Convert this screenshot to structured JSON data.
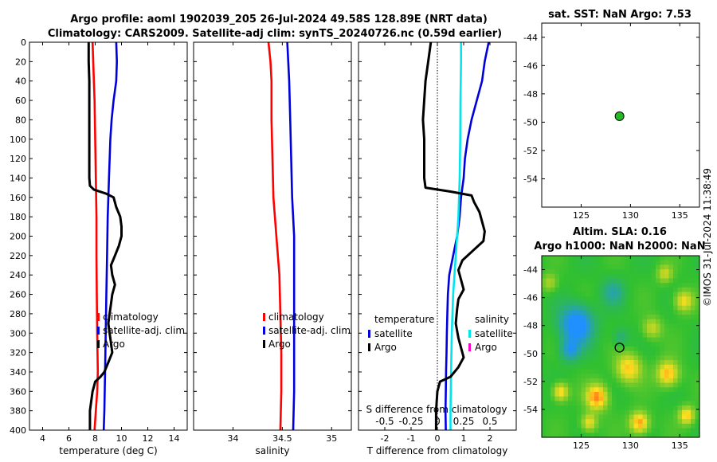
{
  "titles": {
    "main_line1": "Argo profile: aoml 1902039_205 26-Jul-2024 49.58S 128.89E (NRT data)",
    "main_line2": "Climatology: CARS2009. Satellite-adj clim: synTS_20240726.nc (0.59d earlier)",
    "sst_title": "sat. SST: NaN Argo: 7.53",
    "sla_title_line1": "Altim. SLA: 0.16",
    "sla_title_line2": "Argo h1000: NaN h2000: NaN",
    "credit": "©IMOS 31-Jul-2024 11:38:49"
  },
  "chart_data": [
    {
      "id": "temperature",
      "type": "line",
      "xlabel": "temperature (deg C)",
      "ylabel": "",
      "xlim": [
        3,
        15
      ],
      "ylim": [
        400,
        0
      ],
      "xticks": [
        4,
        6,
        8,
        10,
        12,
        14
      ],
      "yticks": [
        0,
        20,
        40,
        60,
        80,
        100,
        120,
        140,
        160,
        180,
        200,
        220,
        240,
        260,
        280,
        300,
        320,
        340,
        360,
        380,
        400
      ],
      "legend": [
        "climatology",
        "satellite-adj. clim",
        "Argo"
      ],
      "series": [
        {
          "name": "climatology",
          "color": "#ff0000",
          "depth": [
            0,
            20,
            60,
            100,
            140,
            180,
            220,
            260,
            300,
            340,
            360,
            380,
            400
          ],
          "values": [
            7.8,
            7.85,
            7.95,
            8.0,
            8.05,
            8.1,
            8.1,
            8.12,
            8.15,
            8.2,
            8.15,
            8.05,
            7.95
          ]
        },
        {
          "name": "satellite-adj. clim",
          "color": "#0000dd",
          "depth": [
            0,
            20,
            40,
            60,
            80,
            100,
            140,
            180,
            220,
            260,
            300,
            340,
            380,
            400
          ],
          "values": [
            9.6,
            9.65,
            9.6,
            9.4,
            9.25,
            9.15,
            9.05,
            8.95,
            8.9,
            8.85,
            8.8,
            8.75,
            8.7,
            8.65
          ]
        },
        {
          "name": "Argo",
          "color": "#000000",
          "depth": [
            0,
            20,
            40,
            60,
            80,
            100,
            120,
            140,
            148,
            152,
            156,
            160,
            170,
            180,
            190,
            200,
            210,
            220,
            230,
            240,
            250,
            260,
            270,
            280,
            290,
            300,
            310,
            320,
            330,
            340,
            345,
            350,
            355,
            360,
            380,
            400
          ],
          "values": [
            7.5,
            7.5,
            7.55,
            7.55,
            7.55,
            7.55,
            7.55,
            7.55,
            7.6,
            7.9,
            8.8,
            9.4,
            9.6,
            9.9,
            10.0,
            10.0,
            9.8,
            9.5,
            9.2,
            9.3,
            9.5,
            9.3,
            9.2,
            9.1,
            9.0,
            9.1,
            9.2,
            9.3,
            9.0,
            8.7,
            8.4,
            8.0,
            7.9,
            7.8,
            7.6,
            7.6
          ]
        }
      ]
    },
    {
      "id": "salinity",
      "type": "line",
      "xlabel": "salinity",
      "xlim": [
        33.6,
        35.2
      ],
      "ylim": [
        400,
        0
      ],
      "xticks": [
        34,
        34.5,
        35
      ],
      "xticklabels": [
        "34",
        "34.5",
        "35"
      ],
      "legend": [
        "climatology",
        "satellite-adj. clim",
        "Argo"
      ],
      "series": [
        {
          "name": "climatology",
          "color": "#ff0000",
          "depth": [
            0,
            20,
            40,
            80,
            120,
            160,
            200,
            240,
            280,
            320,
            360,
            400
          ],
          "values": [
            34.36,
            34.38,
            34.39,
            34.39,
            34.4,
            34.41,
            34.44,
            34.47,
            34.48,
            34.49,
            34.49,
            34.48
          ]
        },
        {
          "name": "satellite-adj. clim",
          "color": "#0000dd",
          "depth": [
            0,
            20,
            40,
            80,
            120,
            160,
            200,
            240,
            280,
            320,
            360,
            400
          ],
          "values": [
            34.55,
            34.56,
            34.57,
            34.58,
            34.59,
            34.6,
            34.62,
            34.62,
            34.62,
            34.62,
            34.62,
            34.61
          ]
        }
      ]
    },
    {
      "id": "difference",
      "type": "line",
      "xlabel": "T difference from climatology",
      "top_axis_label": "S difference from climatology",
      "xlim": [
        -3,
        3
      ],
      "ylim": [
        400,
        0
      ],
      "xticks": [
        -2,
        -1,
        0,
        1,
        2
      ],
      "xticklabels": [
        "-2",
        "-1",
        "0",
        "1",
        "2"
      ],
      "s_ticklabels": [
        "-0.5",
        "-0.25",
        "0",
        "0.25",
        "0.5"
      ],
      "legend_temperature": {
        "heading": "temperature",
        "items": [
          "satellite",
          "Argo"
        ]
      },
      "legend_salinity": {
        "heading": "salinity",
        "items": [
          "satellite",
          "Argo"
        ]
      },
      "series": [
        {
          "name": "T satellite",
          "color": "#0000dd",
          "depth": [
            0,
            20,
            40,
            60,
            80,
            100,
            120,
            140,
            160,
            180,
            200,
            220,
            240,
            260,
            280,
            300,
            320,
            340,
            360,
            380,
            400
          ],
          "values": [
            1.95,
            1.8,
            1.7,
            1.5,
            1.3,
            1.15,
            1.05,
            1.0,
            0.9,
            0.85,
            0.75,
            0.6,
            0.45,
            0.4,
            0.38,
            0.36,
            0.35,
            0.33,
            0.32,
            0.31,
            0.32
          ]
        },
        {
          "name": "S satellite",
          "color": "#00e5ee",
          "depth": [
            0,
            20,
            60,
            100,
            140,
            180,
            220,
            260,
            300,
            340,
            380,
            400
          ],
          "values": [
            0.9,
            0.9,
            0.88,
            0.87,
            0.85,
            0.8,
            0.7,
            0.6,
            0.55,
            0.52,
            0.5,
            0.5
          ]
        },
        {
          "name": "T Argo",
          "color": "#000000",
          "depth": [
            0,
            20,
            40,
            60,
            80,
            100,
            120,
            140,
            150,
            154,
            158,
            165,
            175,
            185,
            195,
            205,
            215,
            225,
            235,
            245,
            255,
            265,
            275,
            290,
            305,
            315,
            325,
            335,
            345,
            350,
            360,
            380,
            400
          ],
          "values": [
            -0.25,
            -0.35,
            -0.45,
            -0.5,
            -0.55,
            -0.5,
            -0.5,
            -0.5,
            -0.45,
            0.5,
            1.3,
            1.4,
            1.6,
            1.7,
            1.8,
            1.75,
            1.35,
            0.95,
            0.8,
            0.9,
            1.0,
            0.8,
            0.75,
            0.7,
            0.8,
            0.9,
            1.0,
            0.8,
            0.5,
            0.1,
            0.0,
            -0.05,
            -0.05
          ]
        }
      ]
    },
    {
      "id": "sst_map",
      "type": "scatter",
      "xlim": [
        121,
        137
      ],
      "ylim": [
        -56,
        -43
      ],
      "xticks": [
        125,
        130,
        135
      ],
      "yticks": [
        -44,
        -46,
        -48,
        -50,
        -52,
        -54
      ],
      "yticklabels": [
        "-44",
        "-46",
        "-48",
        "-50",
        "-52",
        "-54"
      ],
      "points": [
        {
          "x": 128.89,
          "y": -49.58,
          "color": "#22bb22"
        }
      ]
    },
    {
      "id": "sla_map",
      "type": "heatmap",
      "xlim": [
        121,
        137
      ],
      "ylim": [
        -56,
        -43
      ],
      "xticks": [
        125,
        130,
        135
      ],
      "yticks": [
        -44,
        -46,
        -48,
        -50,
        -52,
        -54
      ],
      "yticklabels": [
        "-44",
        "-46",
        "-48",
        "-50",
        "-52",
        "-54"
      ],
      "point": {
        "x": 128.89,
        "y": -49.58
      },
      "colors": {
        "low": "#2090ff",
        "mid": "#30c030",
        "high": "#ffe020",
        "max": "#ff3010"
      }
    }
  ]
}
